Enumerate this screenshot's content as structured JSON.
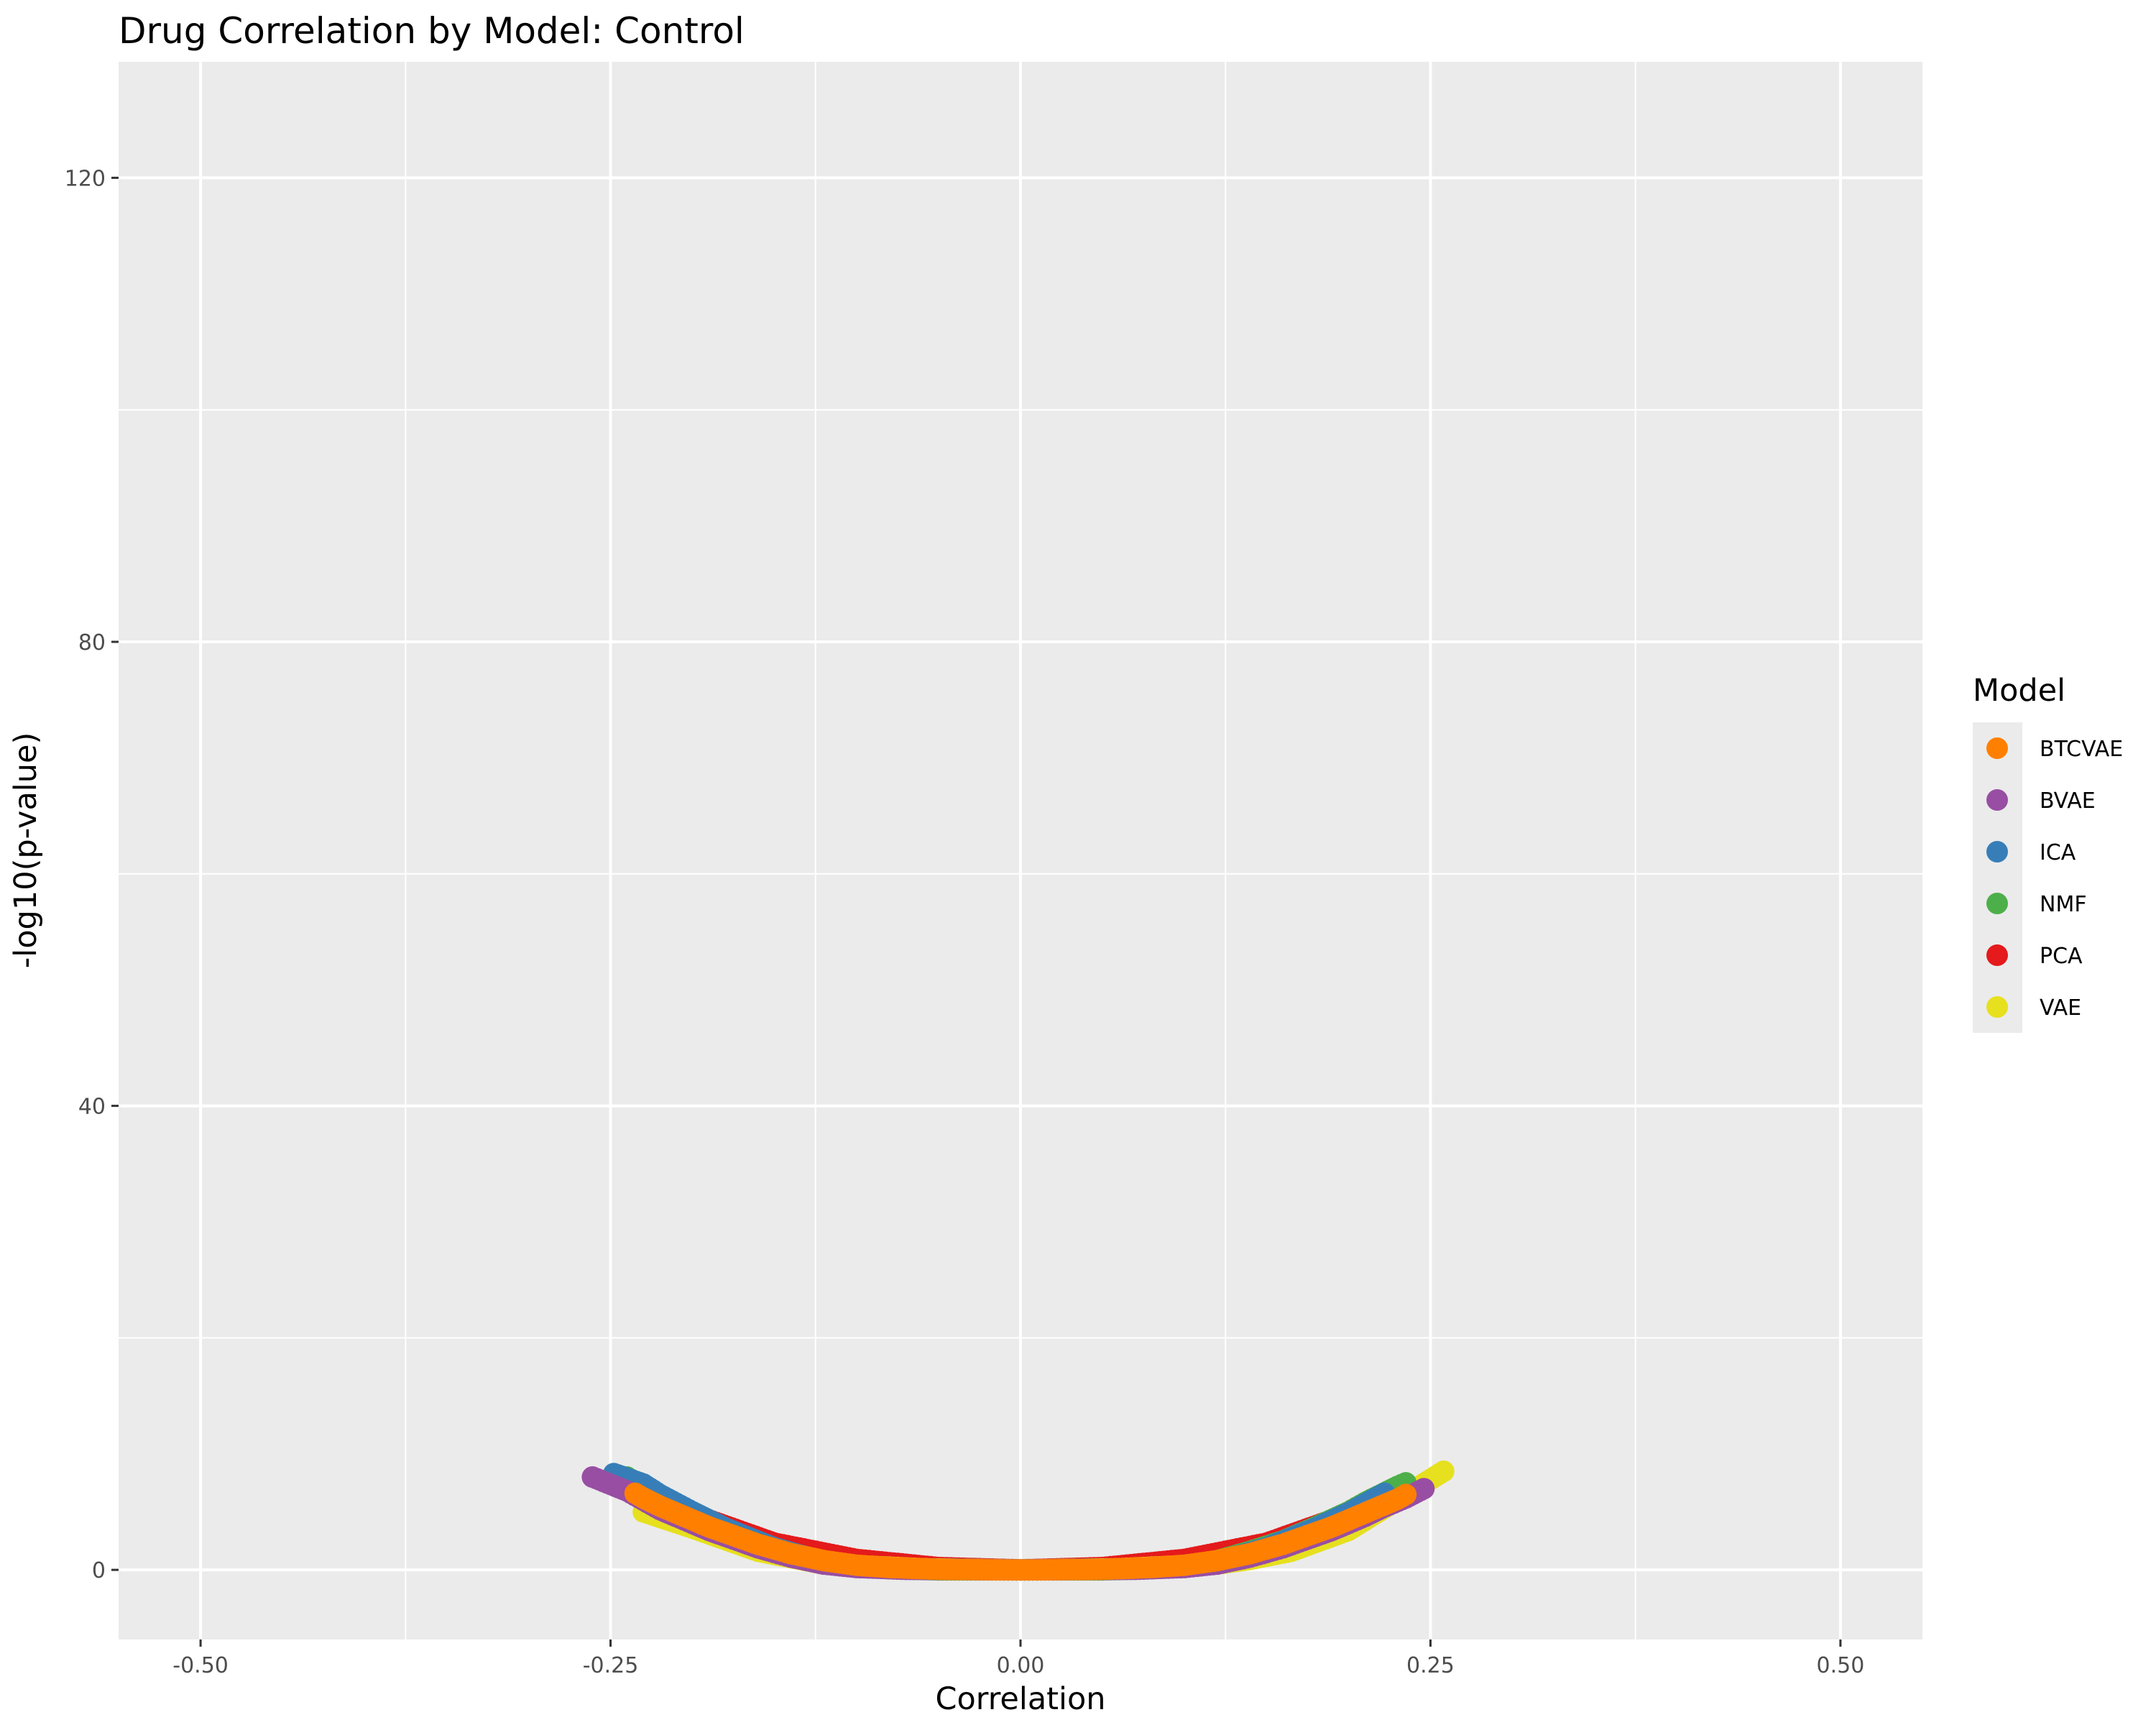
{
  "chart_data": {
    "type": "scatter",
    "title": "Drug Correlation by Model: Control",
    "xlabel": "Correlation",
    "ylabel": "-log10(p-value)",
    "xlim": [
      -0.55,
      0.55
    ],
    "ylim": [
      -6,
      130
    ],
    "x_ticks": [
      -0.5,
      -0.25,
      0,
      0.25,
      0.5
    ],
    "x_tick_labels": [
      "-0.50",
      "-0.25",
      "0.00",
      "0.25",
      "0.50"
    ],
    "y_ticks": [
      0,
      40,
      80,
      120
    ],
    "y_tick_labels": [
      "0",
      "40",
      "80",
      "120"
    ],
    "grid": true,
    "legend": {
      "title": "Model",
      "placement": "right",
      "entries": [
        {
          "label": "BTCVAE",
          "color": "#FF7F00"
        },
        {
          "label": "BVAE",
          "color": "#984EA3"
        },
        {
          "label": "ICA",
          "color": "#377EB8"
        },
        {
          "label": "NMF",
          "color": "#4DAF4A"
        },
        {
          "label": "PCA",
          "color": "#E41A1C"
        },
        {
          "label": "VAE",
          "color": "#E6E01E"
        }
      ]
    },
    "series": [
      {
        "name": "PCA",
        "color": "#E41A1C",
        "points": [
          [
            -0.2,
            4.8
          ],
          [
            -0.15,
            2.3
          ],
          [
            -0.1,
            0.9
          ],
          [
            -0.05,
            0.2
          ],
          [
            0.0,
            0.0
          ],
          [
            0.05,
            0.2
          ],
          [
            0.1,
            0.9
          ],
          [
            0.15,
            2.3
          ],
          [
            0.2,
            4.8
          ]
        ]
      },
      {
        "name": "VAE",
        "color": "#E6E01E",
        "points": [
          [
            -0.23,
            5.0
          ],
          [
            -0.2,
            3.6
          ],
          [
            -0.16,
            1.6
          ],
          [
            -0.12,
            0.5
          ],
          [
            -0.06,
            0.1
          ],
          [
            0.0,
            0.0
          ],
          [
            0.06,
            0.1
          ],
          [
            0.12,
            0.5
          ],
          [
            0.14,
            0.9
          ],
          [
            0.165,
            1.6
          ],
          [
            0.2,
            3.4
          ],
          [
            0.258,
            8.5
          ]
        ]
      },
      {
        "name": "NMF",
        "color": "#4DAF4A",
        "points": [
          [
            -0.24,
            8.0
          ],
          [
            -0.23,
            7.2
          ],
          [
            -0.22,
            6.4
          ],
          [
            -0.21,
            5.6
          ],
          [
            -0.2,
            5.0
          ],
          [
            -0.19,
            4.3
          ],
          [
            -0.18,
            3.6
          ],
          [
            -0.17,
            3.0
          ],
          [
            -0.16,
            2.4
          ],
          [
            -0.15,
            1.9
          ],
          [
            -0.14,
            1.4
          ],
          [
            -0.13,
            1.0
          ],
          [
            -0.12,
            0.7
          ],
          [
            -0.11,
            0.5
          ],
          [
            -0.1,
            0.3
          ],
          [
            -0.08,
            0.1
          ],
          [
            -0.05,
            0.0
          ],
          [
            0.0,
            0.0
          ],
          [
            0.05,
            0.0
          ],
          [
            0.08,
            0.1
          ],
          [
            0.1,
            0.3
          ],
          [
            0.12,
            0.8
          ],
          [
            0.14,
            1.6
          ],
          [
            0.16,
            2.5
          ],
          [
            0.18,
            3.7
          ],
          [
            0.2,
            5.0
          ],
          [
            0.21,
            5.8
          ],
          [
            0.22,
            6.5
          ],
          [
            0.23,
            7.2
          ],
          [
            0.235,
            7.5
          ]
        ]
      },
      {
        "name": "ICA",
        "color": "#377EB8",
        "points": [
          [
            -0.248,
            8.3
          ],
          [
            -0.23,
            7.4
          ],
          [
            -0.22,
            6.5
          ],
          [
            -0.2,
            5.0
          ],
          [
            -0.18,
            3.6
          ],
          [
            -0.15,
            1.9
          ],
          [
            -0.12,
            0.7
          ],
          [
            -0.08,
            0.1
          ],
          [
            0.0,
            0.0
          ],
          [
            0.08,
            0.1
          ],
          [
            0.12,
            0.7
          ],
          [
            0.15,
            1.9
          ],
          [
            0.18,
            3.6
          ],
          [
            0.2,
            4.9
          ],
          [
            0.222,
            6.6
          ]
        ]
      },
      {
        "name": "BVAE",
        "color": "#984EA3",
        "points": [
          [
            -0.261,
            8.0
          ],
          [
            -0.24,
            6.8
          ],
          [
            -0.22,
            5.2
          ],
          [
            -0.21,
            4.6
          ],
          [
            -0.2,
            4.0
          ],
          [
            -0.19,
            3.4
          ],
          [
            -0.18,
            2.9
          ],
          [
            -0.17,
            2.4
          ],
          [
            -0.16,
            1.9
          ],
          [
            -0.15,
            1.5
          ],
          [
            -0.14,
            1.1
          ],
          [
            -0.13,
            0.8
          ],
          [
            -0.12,
            0.5
          ],
          [
            -0.1,
            0.2
          ],
          [
            -0.07,
            0.05
          ],
          [
            0.0,
            0.0
          ],
          [
            0.07,
            0.05
          ],
          [
            0.1,
            0.2
          ],
          [
            0.12,
            0.5
          ],
          [
            0.14,
            1.1
          ],
          [
            0.16,
            1.9
          ],
          [
            0.18,
            2.9
          ],
          [
            0.19,
            3.4
          ],
          [
            0.2,
            4.0
          ],
          [
            0.21,
            4.6
          ],
          [
            0.22,
            5.3
          ],
          [
            0.235,
            6.2
          ],
          [
            0.246,
            7.0
          ]
        ]
      },
      {
        "name": "BTCVAE",
        "color": "#FF7F00",
        "points": [
          [
            -0.235,
            6.6
          ],
          [
            -0.23,
            6.2
          ],
          [
            -0.22,
            5.5
          ],
          [
            -0.21,
            4.9
          ],
          [
            -0.2,
            4.3
          ],
          [
            -0.19,
            3.7
          ],
          [
            -0.18,
            3.2
          ],
          [
            -0.17,
            2.7
          ],
          [
            -0.16,
            2.2
          ],
          [
            -0.15,
            1.8
          ],
          [
            -0.14,
            1.4
          ],
          [
            -0.13,
            1.1
          ],
          [
            -0.12,
            0.8
          ],
          [
            -0.11,
            0.6
          ],
          [
            -0.1,
            0.4
          ],
          [
            -0.09,
            0.3
          ],
          [
            -0.08,
            0.2
          ],
          [
            -0.07,
            0.15
          ],
          [
            -0.06,
            0.1
          ],
          [
            -0.05,
            0.05
          ],
          [
            -0.04,
            0.03
          ],
          [
            -0.03,
            0.02
          ],
          [
            -0.02,
            0.01
          ],
          [
            -0.01,
            0.0
          ],
          [
            0.0,
            0.0
          ],
          [
            0.01,
            0.0
          ],
          [
            0.02,
            0.01
          ],
          [
            0.03,
            0.02
          ],
          [
            0.04,
            0.03
          ],
          [
            0.05,
            0.05
          ],
          [
            0.06,
            0.1
          ],
          [
            0.07,
            0.15
          ],
          [
            0.08,
            0.2
          ],
          [
            0.09,
            0.3
          ],
          [
            0.1,
            0.4
          ],
          [
            0.11,
            0.6
          ],
          [
            0.12,
            0.8
          ],
          [
            0.13,
            1.1
          ],
          [
            0.14,
            1.4
          ],
          [
            0.15,
            1.8
          ],
          [
            0.16,
            2.2
          ],
          [
            0.17,
            2.7
          ],
          [
            0.18,
            3.2
          ],
          [
            0.19,
            3.7
          ],
          [
            0.2,
            4.3
          ],
          [
            0.21,
            4.9
          ],
          [
            0.22,
            5.5
          ],
          [
            0.23,
            6.1
          ],
          [
            0.235,
            6.5
          ]
        ]
      }
    ]
  }
}
